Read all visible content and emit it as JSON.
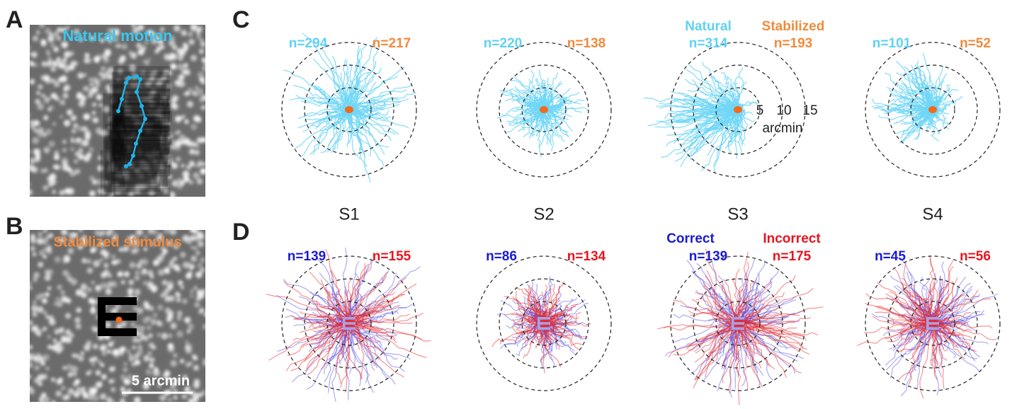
{
  "panels": {
    "A": {
      "letter": "A",
      "label": "Natural motion"
    },
    "B": {
      "letter": "B",
      "label": "Stabilized stimulus",
      "scale_bar": "5 arcmin"
    },
    "C": {
      "letter": "C",
      "legend_natural": "Natural",
      "legend_stabilized": "Stabilized",
      "ring_labels": [
        "5",
        "10",
        "15"
      ],
      "ring_unit": "arcmin",
      "counts": [
        {
          "natural": "n=294",
          "stabilized": "n=217"
        },
        {
          "natural": "n=220",
          "stabilized": "n=138"
        },
        {
          "natural": "n=314",
          "stabilized": "n=193"
        },
        {
          "natural": "n=101",
          "stabilized": "n=52"
        }
      ]
    },
    "D": {
      "letter": "D",
      "legend_correct": "Correct",
      "legend_incorrect": "Incorrect",
      "counts": [
        {
          "correct": "n=139",
          "incorrect": "n=155"
        },
        {
          "correct": "n=86",
          "incorrect": "n=134"
        },
        {
          "correct": "n=139",
          "incorrect": "n=175"
        },
        {
          "correct": "n=45",
          "incorrect": "n=56"
        }
      ]
    }
  },
  "subjects": [
    "S1",
    "S2",
    "S3",
    "S4"
  ]
}
